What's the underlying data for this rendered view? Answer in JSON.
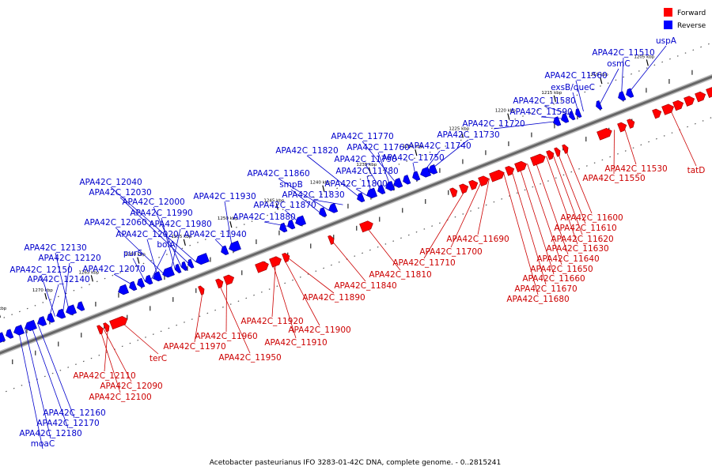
{
  "caption": "Acetobacter pasteurianus IFO 3283-01-42C DNA, complete genome. - 0..2815241",
  "legend": [
    {
      "label": "Forward",
      "color": "#ff0000"
    },
    {
      "label": "Reverse",
      "color": "#0000ff"
    }
  ],
  "colors": {
    "forward": "#ff0000",
    "reverse": "#0000ff",
    "backbone": "#888888"
  },
  "scale_ticks": [
    "1205 kbp",
    "1210 kbp",
    "1215 kbp",
    "1220 kbp",
    "1225 kbp",
    "1230 kbp",
    "1235 kbp",
    "1240 kbp",
    "1245 kbp",
    "1250 kbp",
    "1255 kbp",
    "1260 kbp",
    "1265 kbp",
    "1270 kbp",
    "1275 kbp"
  ],
  "reverse_labels": [
    "uspA",
    "APA42C_11510",
    "osmC",
    "APA42C_11560",
    "exsB/queC",
    "APA42C_11580",
    "APA42C_11590",
    "APA42C_11720",
    "APA42C_11730",
    "APA42C_11740",
    "APA42C_11750",
    "APA42C_11770",
    "APA42C_11760",
    "APA42C_11790",
    "APA42C_11780",
    "APA42C_11820",
    "APA42C_11800",
    "APA42C_11830",
    "APA42C_11860",
    "smpB",
    "APA42C_11870",
    "APA42C_11880",
    "APA42C_11930",
    "APA42C_11940",
    "APA42C_12040",
    "APA42C_12030",
    "APA42C_12000",
    "APA42C_11990",
    "APA42C_11980",
    "APA42C_12060",
    "APA42C_12020",
    "bolA",
    "purS",
    "APA42C_12070",
    "APA42C_12130",
    "APA42C_12120",
    "APA42C_12150",
    "APA42C_12140",
    "APA42C_12160",
    "APA42C_12170",
    "APA42C_12180",
    "moaC"
  ],
  "forward_labels": [
    "tatD",
    "APA42C_11530",
    "APA42C_11550",
    "APA42C_11600",
    "APA42C_11610",
    "APA42C_11620",
    "APA42C_11630",
    "APA42C_11640",
    "APA42C_11650",
    "APA42C_11660",
    "APA42C_11670",
    "APA42C_11680",
    "APA42C_11690",
    "APA42C_11700",
    "APA42C_11710",
    "APA42C_11810",
    "APA42C_11840",
    "APA42C_11890",
    "APA42C_11920",
    "APA42C_11900",
    "APA42C_11910",
    "APA42C_11960",
    "APA42C_11950",
    "APA42C_11970",
    "terC",
    "APA42C_12110",
    "APA42C_12090",
    "APA42C_12100"
  ]
}
